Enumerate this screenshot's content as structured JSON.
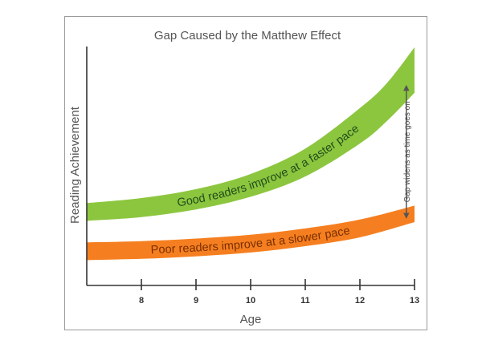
{
  "chart_data": {
    "type": "area",
    "title": "Gap Caused by the Matthew Effect",
    "xlabel": "Age",
    "ylabel": "Reading Achievement",
    "x_ticks": [
      "8",
      "9",
      "10",
      "11",
      "12",
      "13"
    ],
    "xlim": [
      7,
      13
    ],
    "ylim": [
      0,
      100
    ],
    "series": [
      {
        "name": "Good readers improve at a faster pace",
        "color": "#8cc63f",
        "x": [
          7,
          8,
          9,
          10,
          11,
          12,
          12.5,
          13
        ],
        "lower": [
          25.5,
          27,
          30,
          35,
          43,
          56,
          65,
          76
        ],
        "upper": [
          32.5,
          34.5,
          38,
          44,
          54,
          70,
          80,
          94
        ]
      },
      {
        "name": "Poor readers improve at a slower pace",
        "color": "#f57f20",
        "x": [
          7,
          8,
          9,
          10,
          11,
          12,
          13
        ],
        "lower": [
          10,
          10.5,
          11.5,
          13,
          15.5,
          19,
          25
        ],
        "upper": [
          17,
          17.5,
          18.5,
          20,
          22.5,
          26,
          31.5
        ]
      }
    ],
    "annotations": [
      {
        "text": "Gap widens as time goes on",
        "color": "#555555"
      }
    ]
  }
}
